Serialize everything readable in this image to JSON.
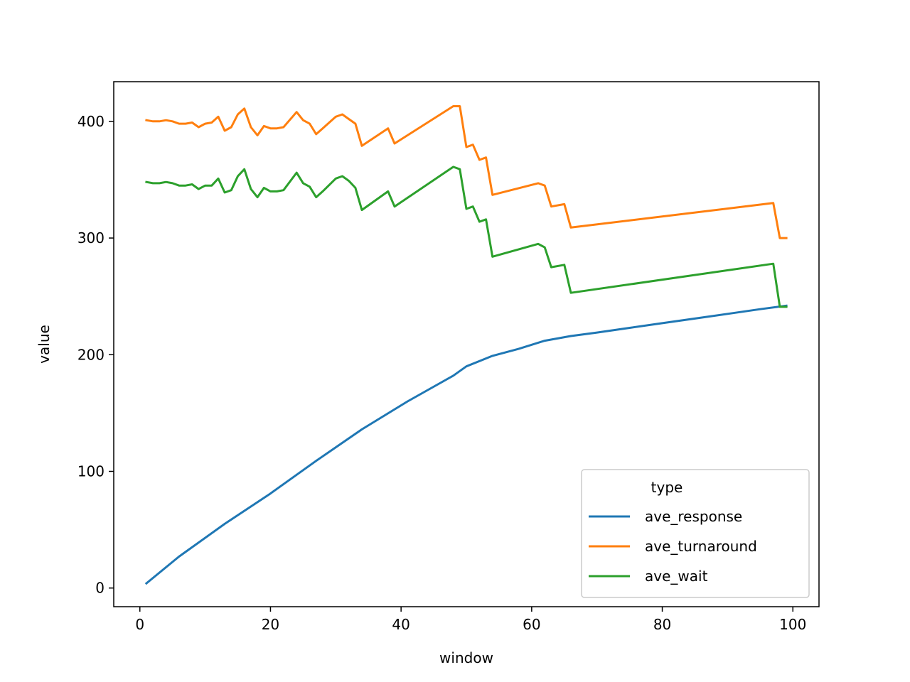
{
  "chart_data": {
    "type": "line",
    "xlabel": "window",
    "ylabel": "value",
    "xlim": [
      -4,
      104
    ],
    "ylim": [
      -16,
      434
    ],
    "xticks": [
      0,
      20,
      40,
      60,
      80,
      100
    ],
    "yticks": [
      0,
      100,
      200,
      300,
      400
    ],
    "xtick_labels": [
      "0",
      "20",
      "40",
      "60",
      "80",
      "100"
    ],
    "ytick_labels": [
      "0",
      "100",
      "200",
      "300",
      "400"
    ],
    "grid": false,
    "legend": {
      "title": "type",
      "placement": "lower right",
      "entries": [
        "ave_response",
        "ave_turnaround",
        "ave_wait"
      ]
    },
    "series": [
      {
        "name": "ave_response",
        "color": "#1f77b4",
        "x": [
          1,
          6,
          13,
          20,
          27,
          34,
          41,
          48,
          50,
          54,
          58,
          62,
          66,
          70,
          75,
          80,
          85,
          90,
          95,
          99
        ],
        "y": [
          4,
          27,
          55,
          81,
          109,
          136,
          160,
          182,
          190,
          199,
          205,
          212,
          216,
          219,
          223,
          227,
          231,
          235,
          239,
          242
        ]
      },
      {
        "name": "ave_turnaround",
        "color": "#ff7f0e",
        "x": [
          1,
          2,
          3,
          4,
          5,
          6,
          7,
          8,
          9,
          10,
          11,
          12,
          13,
          14,
          15,
          16,
          17,
          18,
          19,
          20,
          21,
          22,
          24,
          25,
          26,
          27,
          28,
          30,
          31,
          32,
          33,
          34,
          38,
          39,
          48,
          49,
          50,
          51,
          52,
          53,
          54,
          61,
          62,
          63,
          65,
          66,
          97,
          98,
          99
        ],
        "y": [
          401,
          400,
          400,
          401,
          400,
          398,
          398,
          399,
          395,
          398,
          399,
          404,
          392,
          395,
          406,
          411,
          395,
          388,
          396,
          394,
          394,
          395,
          408,
          401,
          398,
          389,
          394,
          404,
          406,
          402,
          398,
          379,
          394,
          381,
          413,
          413,
          378,
          380,
          367,
          369,
          337,
          347,
          345,
          327,
          329,
          309,
          330,
          300,
          300
        ]
      },
      {
        "name": "ave_wait",
        "color": "#2ca02c",
        "x": [
          1,
          2,
          3,
          4,
          5,
          6,
          7,
          8,
          9,
          10,
          11,
          12,
          13,
          14,
          15,
          16,
          17,
          18,
          19,
          20,
          21,
          22,
          24,
          25,
          26,
          27,
          28,
          30,
          31,
          32,
          33,
          34,
          38,
          39,
          48,
          49,
          50,
          51,
          52,
          53,
          54,
          61,
          62,
          63,
          65,
          66,
          97,
          98,
          99
        ],
        "y": [
          348,
          347,
          347,
          348,
          347,
          345,
          345,
          346,
          342,
          345,
          345,
          351,
          339,
          341,
          353,
          359,
          342,
          335,
          343,
          340,
          340,
          341,
          356,
          347,
          344,
          335,
          340,
          351,
          353,
          349,
          343,
          324,
          340,
          327,
          361,
          359,
          325,
          327,
          314,
          316,
          284,
          295,
          292,
          275,
          277,
          253,
          278,
          241,
          241
        ]
      }
    ]
  }
}
